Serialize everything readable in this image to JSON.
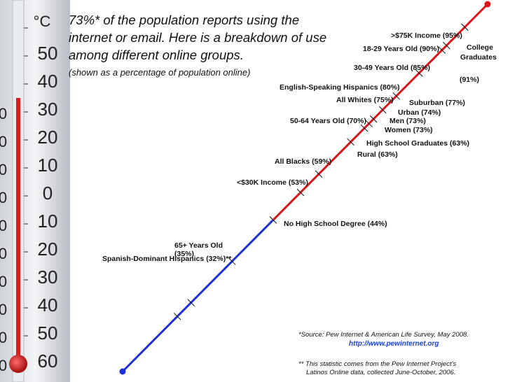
{
  "header": {
    "title": "73%* of the population reports using the internet or email. Here is a breakdown of use among different online groups.",
    "subtitle": "(shown as a percentage of population online)"
  },
  "thermometer": {
    "unit": "°C",
    "scale_labels": [
      "50",
      "40",
      "30",
      "20",
      "10",
      "0",
      "10",
      "20",
      "30",
      "40",
      "50",
      "60"
    ],
    "left_scale_labels": [
      "0",
      "0",
      "0",
      "0",
      "0",
      "0",
      "0",
      "0",
      "0",
      "0"
    ]
  },
  "chart_data": {
    "type": "line",
    "title": "73%* of the population reports using the internet or email. Here is a breakdown of use among different online groups.",
    "subtitle": "(shown as a percentage of population online)",
    "xlabel": "",
    "ylabel": "",
    "ylim": [
      20,
      100
    ],
    "colors": {
      "above": "#d9141b",
      "below": "#1d2fd8",
      "midpoint": 53
    },
    "points": [
      {
        "label": ">$75K Income (95%)",
        "value": 95
      },
      {
        "label": "College Graduates (91%)",
        "value": 91
      },
      {
        "label": "18-29 Years Old (90%)",
        "value": 90
      },
      {
        "label": "30-49 Years Old (85%)",
        "value": 85
      },
      {
        "label": "English-Speaking Hispanics (80%)",
        "value": 80
      },
      {
        "label": "Suburban (77%)",
        "value": 77
      },
      {
        "label": "All Whites (75%)",
        "value": 75
      },
      {
        "label": "Urban (74%)",
        "value": 74
      },
      {
        "label": "Men (73%)",
        "value": 73
      },
      {
        "label": "Women (73%)",
        "value": 73
      },
      {
        "label": "50-64 Years Old (70%)",
        "value": 70
      },
      {
        "label": "High School Graduates (63%)",
        "value": 63
      },
      {
        "label": "Rural (63%)",
        "value": 63
      },
      {
        "label": "All Blacks (59%)",
        "value": 59
      },
      {
        "label": "<$30K Income (53%)",
        "value": 53
      },
      {
        "label": "No High School Degree (44%)",
        "value": 44
      },
      {
        "label": "65+ Years Old (35%)",
        "value": 35
      },
      {
        "label": "Spanish-Dominant Hispanics (32%)**",
        "value": 32
      }
    ]
  },
  "labels": {
    "l1": ">$75K Income (95%)",
    "l2a": "College",
    "l2b": "Graduates",
    "l2c": "(91%)",
    "l3": "18-29 Years Old (90%)",
    "l4": "30-49 Years Old (85%)",
    "l5": "English-Speaking Hispanics (80%)",
    "l6": "Suburban (77%)",
    "l7": "All Whites (75%)",
    "l8": "Urban (74%)",
    "l9": "Men (73%)",
    "l10": "Women (73%)",
    "l11": "50-64 Years Old (70%)",
    "l12": "High School Graduates (63%)",
    "l13": "Rural (63%)",
    "l14": "All Blacks (59%)",
    "l15": "<$30K Income (53%)",
    "l16": "No High School Degree (44%)",
    "l17a": "65+ Years Old",
    "l17b": "(35%)",
    "l18": "Spanish-Dominant Hispanics (32%)**"
  },
  "footer": {
    "source": "*Source: Pew Internet & American Life Survey, May 2008.",
    "link": "http://www.pewinternet.org",
    "note1": "** This statistic comes from the Pew Internet Project’s",
    "note2": "Latinos Online data, collected June-October, 2006."
  }
}
